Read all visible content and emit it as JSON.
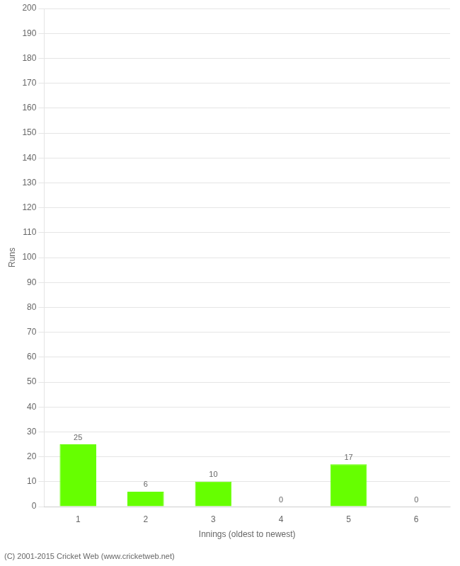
{
  "chart_data": {
    "type": "bar",
    "categories": [
      "1",
      "2",
      "3",
      "4",
      "5",
      "6"
    ],
    "values": [
      25,
      6,
      10,
      0,
      17,
      0
    ],
    "color": "#66ff00",
    "xlabel": "Innings (oldest to newest)",
    "ylabel": "Runs",
    "ylim": [
      0,
      200
    ],
    "yticks": [
      0,
      10,
      20,
      30,
      40,
      50,
      60,
      70,
      80,
      90,
      100,
      110,
      120,
      130,
      140,
      150,
      160,
      170,
      180,
      190,
      200
    ],
    "grid": true,
    "data_labels": true,
    "annotations": [
      "(C) 2001-2015 Cricket Web (www.cricketweb.net)"
    ]
  }
}
